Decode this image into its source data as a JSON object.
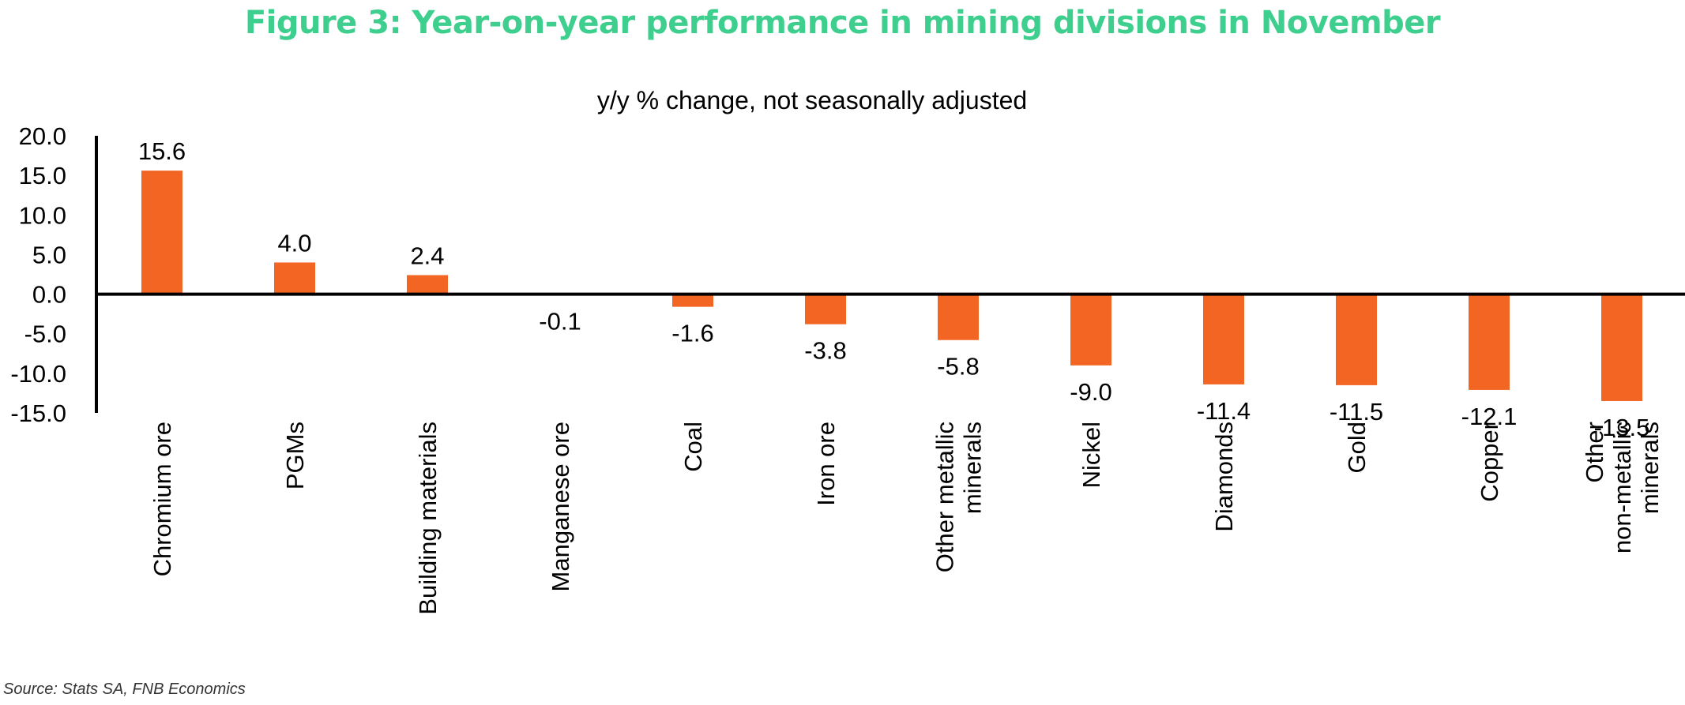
{
  "figure_title": "Figure 3: Year-on-year performance in mining divisions in November",
  "source": "Source: Stats SA, FNB Economics",
  "chart_data": {
    "type": "bar",
    "title": "y/y % change, not seasonally adjusted",
    "xlabel": "",
    "ylabel": "",
    "ylim": [
      -15,
      20
    ],
    "yticks": [
      "20.0",
      "15.0",
      "10.0",
      "5.0",
      "0.0",
      "-5.0",
      "-10.0",
      "-15.0"
    ],
    "categories": [
      [
        "Chromium ore"
      ],
      [
        "PGMs"
      ],
      [
        "Building materials"
      ],
      [
        "Manganese ore"
      ],
      [
        "Coal"
      ],
      [
        "Iron ore"
      ],
      [
        "Other metallic",
        "minerals"
      ],
      [
        "Nickel"
      ],
      [
        "Diamonds"
      ],
      [
        "Gold"
      ],
      [
        "Copper"
      ],
      [
        "Other",
        "non-metallic",
        "minerals"
      ]
    ],
    "values": [
      15.6,
      4.0,
      2.4,
      -0.1,
      -1.6,
      -3.8,
      -5.8,
      -9.0,
      -11.4,
      -11.5,
      -12.1,
      -13.5
    ],
    "data_labels": [
      "15.6",
      "4.0",
      "2.4",
      "-0.1",
      "-1.6",
      "-3.8",
      "-5.8",
      "-9.0",
      "-11.4",
      "-11.5",
      "-12.1",
      "-13.5"
    ],
    "bar_color": "#f26522",
    "grid": false,
    "legend": "none"
  }
}
